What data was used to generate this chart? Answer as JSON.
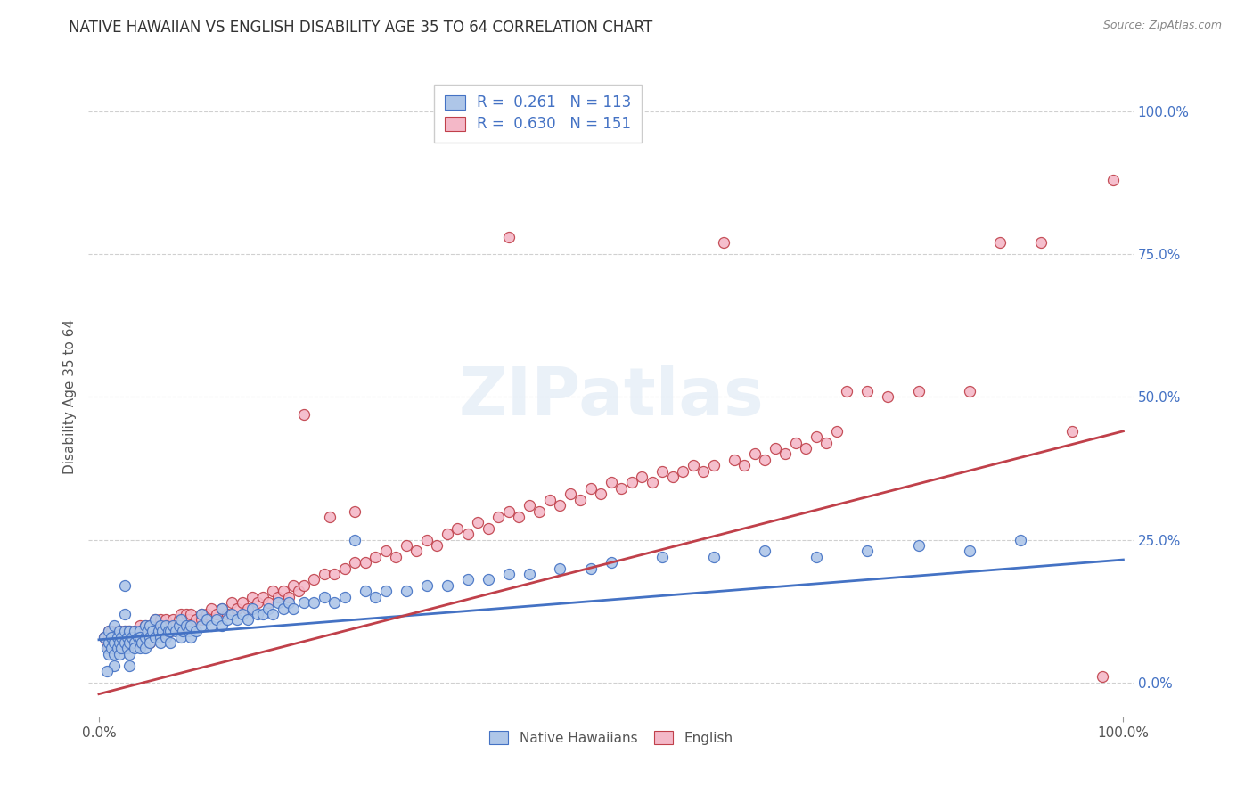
{
  "title": "NATIVE HAWAIIAN VS ENGLISH DISABILITY AGE 35 TO 64 CORRELATION CHART",
  "source": "Source: ZipAtlas.com",
  "ylabel": "Disability Age 35 to 64",
  "blue_color": "#aec6e8",
  "blue_edge_color": "#4472c4",
  "blue_line_color": "#4472c4",
  "pink_color": "#f4b8c8",
  "pink_edge_color": "#c0404a",
  "pink_line_color": "#c0404a",
  "watermark": "ZIPatlas",
  "legend_label_blue": "Native Hawaiians",
  "legend_label_pink": "English",
  "blue_scatter": [
    [
      0.005,
      0.08
    ],
    [
      0.008,
      0.06
    ],
    [
      0.01,
      0.07
    ],
    [
      0.01,
      0.05
    ],
    [
      0.01,
      0.09
    ],
    [
      0.012,
      0.06
    ],
    [
      0.012,
      0.08
    ],
    [
      0.015,
      0.07
    ],
    [
      0.015,
      0.05
    ],
    [
      0.015,
      0.1
    ],
    [
      0.018,
      0.06
    ],
    [
      0.018,
      0.08
    ],
    [
      0.02,
      0.07
    ],
    [
      0.02,
      0.09
    ],
    [
      0.02,
      0.05
    ],
    [
      0.022,
      0.08
    ],
    [
      0.022,
      0.06
    ],
    [
      0.025,
      0.07
    ],
    [
      0.025,
      0.09
    ],
    [
      0.025,
      0.12
    ],
    [
      0.025,
      0.17
    ],
    [
      0.028,
      0.08
    ],
    [
      0.028,
      0.06
    ],
    [
      0.03,
      0.09
    ],
    [
      0.03,
      0.07
    ],
    [
      0.03,
      0.05
    ],
    [
      0.032,
      0.08
    ],
    [
      0.035,
      0.07
    ],
    [
      0.035,
      0.09
    ],
    [
      0.035,
      0.06
    ],
    [
      0.038,
      0.08
    ],
    [
      0.04,
      0.07
    ],
    [
      0.04,
      0.09
    ],
    [
      0.04,
      0.06
    ],
    [
      0.04,
      0.08
    ],
    [
      0.042,
      0.07
    ],
    [
      0.045,
      0.08
    ],
    [
      0.045,
      0.1
    ],
    [
      0.045,
      0.06
    ],
    [
      0.048,
      0.09
    ],
    [
      0.05,
      0.08
    ],
    [
      0.05,
      0.07
    ],
    [
      0.05,
      0.1
    ],
    [
      0.052,
      0.09
    ],
    [
      0.055,
      0.08
    ],
    [
      0.055,
      0.11
    ],
    [
      0.058,
      0.09
    ],
    [
      0.06,
      0.08
    ],
    [
      0.06,
      0.07
    ],
    [
      0.06,
      0.1
    ],
    [
      0.062,
      0.09
    ],
    [
      0.065,
      0.08
    ],
    [
      0.065,
      0.1
    ],
    [
      0.068,
      0.09
    ],
    [
      0.07,
      0.09
    ],
    [
      0.07,
      0.07
    ],
    [
      0.072,
      0.1
    ],
    [
      0.075,
      0.09
    ],
    [
      0.078,
      0.1
    ],
    [
      0.08,
      0.08
    ],
    [
      0.08,
      0.11
    ],
    [
      0.082,
      0.09
    ],
    [
      0.085,
      0.1
    ],
    [
      0.088,
      0.09
    ],
    [
      0.09,
      0.1
    ],
    [
      0.09,
      0.08
    ],
    [
      0.095,
      0.09
    ],
    [
      0.1,
      0.1
    ],
    [
      0.1,
      0.12
    ],
    [
      0.105,
      0.11
    ],
    [
      0.11,
      0.1
    ],
    [
      0.115,
      0.11
    ],
    [
      0.12,
      0.1
    ],
    [
      0.12,
      0.13
    ],
    [
      0.125,
      0.11
    ],
    [
      0.13,
      0.12
    ],
    [
      0.135,
      0.11
    ],
    [
      0.14,
      0.12
    ],
    [
      0.145,
      0.11
    ],
    [
      0.15,
      0.13
    ],
    [
      0.155,
      0.12
    ],
    [
      0.16,
      0.12
    ],
    [
      0.165,
      0.13
    ],
    [
      0.17,
      0.12
    ],
    [
      0.175,
      0.14
    ],
    [
      0.18,
      0.13
    ],
    [
      0.185,
      0.14
    ],
    [
      0.19,
      0.13
    ],
    [
      0.2,
      0.14
    ],
    [
      0.21,
      0.14
    ],
    [
      0.22,
      0.15
    ],
    [
      0.23,
      0.14
    ],
    [
      0.24,
      0.15
    ],
    [
      0.25,
      0.25
    ],
    [
      0.26,
      0.16
    ],
    [
      0.27,
      0.15
    ],
    [
      0.28,
      0.16
    ],
    [
      0.3,
      0.16
    ],
    [
      0.32,
      0.17
    ],
    [
      0.34,
      0.17
    ],
    [
      0.36,
      0.18
    ],
    [
      0.38,
      0.18
    ],
    [
      0.4,
      0.19
    ],
    [
      0.42,
      0.19
    ],
    [
      0.45,
      0.2
    ],
    [
      0.48,
      0.2
    ],
    [
      0.5,
      0.21
    ],
    [
      0.55,
      0.22
    ],
    [
      0.6,
      0.22
    ],
    [
      0.65,
      0.23
    ],
    [
      0.7,
      0.22
    ],
    [
      0.75,
      0.23
    ],
    [
      0.8,
      0.24
    ],
    [
      0.85,
      0.23
    ],
    [
      0.9,
      0.25
    ],
    [
      0.03,
      0.03
    ],
    [
      0.015,
      0.03
    ],
    [
      0.008,
      0.02
    ]
  ],
  "pink_scatter": [
    [
      0.005,
      0.08
    ],
    [
      0.008,
      0.07
    ],
    [
      0.01,
      0.08
    ],
    [
      0.01,
      0.06
    ],
    [
      0.01,
      0.09
    ],
    [
      0.012,
      0.07
    ],
    [
      0.012,
      0.09
    ],
    [
      0.015,
      0.08
    ],
    [
      0.015,
      0.06
    ],
    [
      0.015,
      0.07
    ],
    [
      0.018,
      0.07
    ],
    [
      0.018,
      0.09
    ],
    [
      0.02,
      0.08
    ],
    [
      0.02,
      0.07
    ],
    [
      0.02,
      0.09
    ],
    [
      0.022,
      0.08
    ],
    [
      0.022,
      0.07
    ],
    [
      0.025,
      0.08
    ],
    [
      0.025,
      0.06
    ],
    [
      0.025,
      0.09
    ],
    [
      0.028,
      0.07
    ],
    [
      0.028,
      0.09
    ],
    [
      0.03,
      0.08
    ],
    [
      0.03,
      0.07
    ],
    [
      0.03,
      0.09
    ],
    [
      0.032,
      0.08
    ],
    [
      0.035,
      0.09
    ],
    [
      0.035,
      0.07
    ],
    [
      0.035,
      0.08
    ],
    [
      0.038,
      0.08
    ],
    [
      0.04,
      0.09
    ],
    [
      0.04,
      0.07
    ],
    [
      0.04,
      0.1
    ],
    [
      0.042,
      0.09
    ],
    [
      0.045,
      0.08
    ],
    [
      0.045,
      0.1
    ],
    [
      0.048,
      0.09
    ],
    [
      0.05,
      0.08
    ],
    [
      0.05,
      0.1
    ],
    [
      0.05,
      0.07
    ],
    [
      0.052,
      0.09
    ],
    [
      0.055,
      0.09
    ],
    [
      0.055,
      0.11
    ],
    [
      0.058,
      0.1
    ],
    [
      0.06,
      0.09
    ],
    [
      0.06,
      0.08
    ],
    [
      0.06,
      0.11
    ],
    [
      0.062,
      0.1
    ],
    [
      0.065,
      0.09
    ],
    [
      0.065,
      0.11
    ],
    [
      0.068,
      0.1
    ],
    [
      0.07,
      0.1
    ],
    [
      0.07,
      0.09
    ],
    [
      0.072,
      0.11
    ],
    [
      0.075,
      0.1
    ],
    [
      0.078,
      0.11
    ],
    [
      0.08,
      0.1
    ],
    [
      0.08,
      0.12
    ],
    [
      0.082,
      0.11
    ],
    [
      0.085,
      0.12
    ],
    [
      0.088,
      0.11
    ],
    [
      0.09,
      0.12
    ],
    [
      0.09,
      0.1
    ],
    [
      0.095,
      0.11
    ],
    [
      0.1,
      0.12
    ],
    [
      0.1,
      0.11
    ],
    [
      0.105,
      0.12
    ],
    [
      0.11,
      0.13
    ],
    [
      0.115,
      0.12
    ],
    [
      0.12,
      0.13
    ],
    [
      0.125,
      0.12
    ],
    [
      0.13,
      0.14
    ],
    [
      0.135,
      0.13
    ],
    [
      0.14,
      0.14
    ],
    [
      0.145,
      0.13
    ],
    [
      0.15,
      0.15
    ],
    [
      0.155,
      0.14
    ],
    [
      0.16,
      0.15
    ],
    [
      0.165,
      0.14
    ],
    [
      0.17,
      0.16
    ],
    [
      0.175,
      0.15
    ],
    [
      0.18,
      0.16
    ],
    [
      0.185,
      0.15
    ],
    [
      0.19,
      0.17
    ],
    [
      0.195,
      0.16
    ],
    [
      0.2,
      0.17
    ],
    [
      0.21,
      0.18
    ],
    [
      0.22,
      0.19
    ],
    [
      0.225,
      0.29
    ],
    [
      0.23,
      0.19
    ],
    [
      0.24,
      0.2
    ],
    [
      0.25,
      0.21
    ],
    [
      0.25,
      0.3
    ],
    [
      0.26,
      0.21
    ],
    [
      0.27,
      0.22
    ],
    [
      0.28,
      0.23
    ],
    [
      0.29,
      0.22
    ],
    [
      0.3,
      0.24
    ],
    [
      0.31,
      0.23
    ],
    [
      0.32,
      0.25
    ],
    [
      0.33,
      0.24
    ],
    [
      0.34,
      0.26
    ],
    [
      0.35,
      0.27
    ],
    [
      0.36,
      0.26
    ],
    [
      0.37,
      0.28
    ],
    [
      0.38,
      0.27
    ],
    [
      0.39,
      0.29
    ],
    [
      0.4,
      0.3
    ],
    [
      0.41,
      0.29
    ],
    [
      0.42,
      0.31
    ],
    [
      0.43,
      0.3
    ],
    [
      0.44,
      0.32
    ],
    [
      0.45,
      0.31
    ],
    [
      0.46,
      0.33
    ],
    [
      0.47,
      0.32
    ],
    [
      0.48,
      0.34
    ],
    [
      0.49,
      0.33
    ],
    [
      0.5,
      0.35
    ],
    [
      0.51,
      0.34
    ],
    [
      0.52,
      0.35
    ],
    [
      0.53,
      0.36
    ],
    [
      0.54,
      0.35
    ],
    [
      0.55,
      0.37
    ],
    [
      0.56,
      0.36
    ],
    [
      0.57,
      0.37
    ],
    [
      0.58,
      0.38
    ],
    [
      0.59,
      0.37
    ],
    [
      0.6,
      0.38
    ],
    [
      0.4,
      0.78
    ],
    [
      0.61,
      0.77
    ],
    [
      0.62,
      0.39
    ],
    [
      0.63,
      0.38
    ],
    [
      0.64,
      0.4
    ],
    [
      0.65,
      0.39
    ],
    [
      0.66,
      0.41
    ],
    [
      0.67,
      0.4
    ],
    [
      0.68,
      0.42
    ],
    [
      0.69,
      0.41
    ],
    [
      0.7,
      0.43
    ],
    [
      0.71,
      0.42
    ],
    [
      0.72,
      0.44
    ],
    [
      0.73,
      0.51
    ],
    [
      0.75,
      0.51
    ],
    [
      0.77,
      0.5
    ],
    [
      0.8,
      0.51
    ],
    [
      0.85,
      0.51
    ],
    [
      0.88,
      0.77
    ],
    [
      0.92,
      0.77
    ],
    [
      0.95,
      0.44
    ],
    [
      0.98,
      0.01
    ],
    [
      0.99,
      0.88
    ],
    [
      0.2,
      0.47
    ]
  ],
  "blue_line_x": [
    0.0,
    1.0
  ],
  "blue_line_y": [
    0.075,
    0.215
  ],
  "pink_line_x": [
    0.0,
    1.0
  ],
  "pink_line_y": [
    -0.02,
    0.44
  ],
  "xlim": [
    -0.01,
    1.01
  ],
  "ylim": [
    -0.06,
    1.06
  ],
  "yticks": [
    0.0,
    0.25,
    0.5,
    0.75,
    1.0
  ],
  "ytick_labels": [
    "0.0%",
    "25.0%",
    "50.0%",
    "75.0%",
    "100.0%"
  ],
  "xticks": [
    0.0,
    1.0
  ],
  "xtick_labels": [
    "0.0%",
    "100.0%"
  ],
  "background_color": "#ffffff",
  "grid_color": "#d0d0d0",
  "title_fontsize": 12,
  "source_fontsize": 9,
  "tick_color": "#4472c4"
}
